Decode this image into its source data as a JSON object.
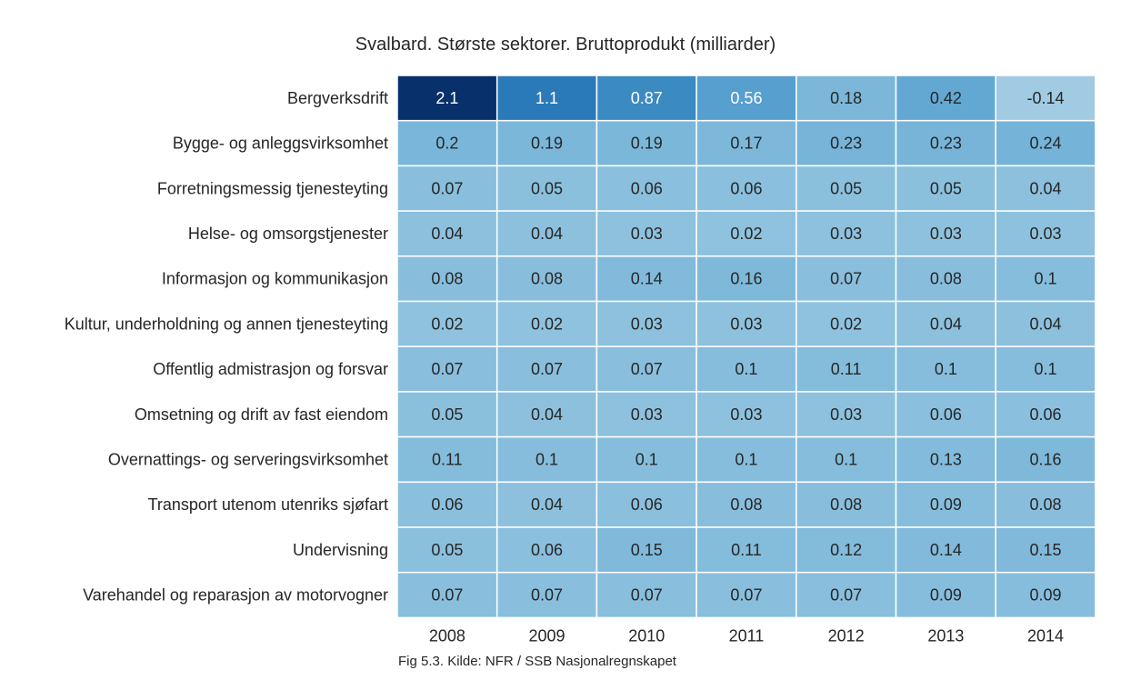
{
  "chart_data": {
    "type": "heatmap",
    "title": "Svalbard. Største sektorer. Bruttoprodukt (milliarder)",
    "caption": "Fig 5.3. Kilde: NFR / SSB Nasjonalregnskapet",
    "colormap": "Blues",
    "grid": false,
    "x": [
      "2008",
      "2009",
      "2010",
      "2011",
      "2012",
      "2013",
      "2014"
    ],
    "y": [
      "Bergverksdrift",
      "Bygge- og anleggsvirksomhet",
      "Forretningsmessig tjenesteyting",
      "Helse- og omsorgstjenester",
      "Informasjon og kommunikasjon",
      "Kultur, underholdning og annen tjenesteyting",
      "Offentlig admistrasjon og forsvar",
      "Omsetning og drift av fast eiendom",
      "Overnattings- og serveringsvirksomhet",
      "Transport utenom utenriks sjøfart",
      "Undervisning",
      "Varehandel og reparasjon av motorvogner"
    ],
    "values": [
      [
        2.1,
        1.1,
        0.87,
        0.56,
        0.18,
        0.42,
        -0.14
      ],
      [
        0.2,
        0.19,
        0.19,
        0.17,
        0.23,
        0.23,
        0.24
      ],
      [
        0.07,
        0.05,
        0.06,
        0.06,
        0.05,
        0.05,
        0.04
      ],
      [
        0.04,
        0.04,
        0.03,
        0.02,
        0.03,
        0.03,
        0.03
      ],
      [
        0.08,
        0.08,
        0.14,
        0.16,
        0.07,
        0.08,
        0.1
      ],
      [
        0.02,
        0.02,
        0.03,
        0.03,
        0.02,
        0.04,
        0.04
      ],
      [
        0.07,
        0.07,
        0.07,
        0.1,
        0.11,
        0.1,
        0.1
      ],
      [
        0.05,
        0.04,
        0.03,
        0.03,
        0.03,
        0.06,
        0.06
      ],
      [
        0.11,
        0.1,
        0.1,
        0.1,
        0.1,
        0.13,
        0.16
      ],
      [
        0.06,
        0.04,
        0.06,
        0.08,
        0.08,
        0.09,
        0.08
      ],
      [
        0.05,
        0.06,
        0.15,
        0.11,
        0.12,
        0.14,
        0.15
      ],
      [
        0.07,
        0.07,
        0.07,
        0.07,
        0.07,
        0.09,
        0.09
      ]
    ],
    "labels": [
      [
        "2.1",
        "1.1",
        "0.87",
        "0.56",
        "0.18",
        "0.42",
        "-0.14"
      ],
      [
        "0.2",
        "0.19",
        "0.19",
        "0.17",
        "0.23",
        "0.23",
        "0.24"
      ],
      [
        "0.07",
        "0.05",
        "0.06",
        "0.06",
        "0.05",
        "0.05",
        "0.04"
      ],
      [
        "0.04",
        "0.04",
        "0.03",
        "0.02",
        "0.03",
        "0.03",
        "0.03"
      ],
      [
        "0.08",
        "0.08",
        "0.14",
        "0.16",
        "0.07",
        "0.08",
        "0.1"
      ],
      [
        "0.02",
        "0.02",
        "0.03",
        "0.03",
        "0.02",
        "0.04",
        "0.04"
      ],
      [
        "0.07",
        "0.07",
        "0.07",
        "0.1",
        "0.11",
        "0.1",
        "0.1"
      ],
      [
        "0.05",
        "0.04",
        "0.03",
        "0.03",
        "0.03",
        "0.06",
        "0.06"
      ],
      [
        "0.11",
        "0.1",
        "0.1",
        "0.1",
        "0.1",
        "0.13",
        "0.16"
      ],
      [
        "0.06",
        "0.04",
        "0.06",
        "0.08",
        "0.08",
        "0.09",
        "0.08"
      ],
      [
        "0.05",
        "0.06",
        "0.15",
        "0.11",
        "0.12",
        "0.14",
        "0.15"
      ],
      [
        "0.07",
        "0.07",
        "0.07",
        "0.07",
        "0.07",
        "0.09",
        "0.09"
      ]
    ]
  }
}
